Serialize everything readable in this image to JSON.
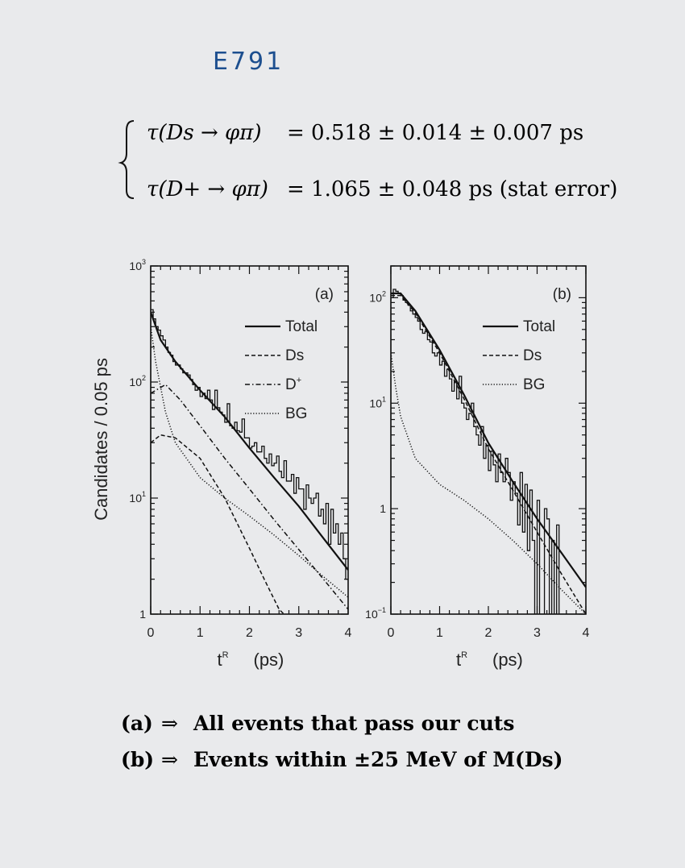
{
  "header": {
    "experiment": "E791"
  },
  "equations": {
    "line1": {
      "lhs": "τ(Ds → φπ)",
      "rhs": "= 0.518 ± 0.014 ± 0.007 ps"
    },
    "line2": {
      "lhs": "τ(D+ → φπ)",
      "rhs": "= 1.065 ± 0.048 ps  (stat error)"
    }
  },
  "shared_ylabel": "Candidates  /  0.05 ps",
  "chart_data": [
    {
      "type": "line",
      "panel_label": "(a)",
      "xlabel": "t",
      "xlabel_sup": "R",
      "xlabel_unit": "(ps)",
      "x_ticks": [
        "0",
        "1",
        "2",
        "3",
        "4"
      ],
      "xlim": [
        0,
        4
      ],
      "y_scale": "log",
      "ylim": [
        1,
        1000
      ],
      "y_ticks": [
        {
          "value": 1,
          "base": "1",
          "exp": ""
        },
        {
          "value": 10,
          "base": "10",
          "exp": "1"
        },
        {
          "value": 100,
          "base": "10",
          "exp": "2"
        },
        {
          "value": 1000,
          "base": "10",
          "exp": "3"
        }
      ],
      "legend_placement": "top-right",
      "series": [
        {
          "name": "Total",
          "style": "solid",
          "x": [
            0,
            0.2,
            0.5,
            1.0,
            1.5,
            2.0,
            2.5,
            3.0,
            3.5,
            4.0
          ],
          "y": [
            400,
            230,
            150,
            85,
            50,
            27,
            15,
            8.5,
            4.5,
            2.4
          ]
        },
        {
          "name": "Ds",
          "style": "dashed",
          "x": [
            0,
            0.2,
            0.5,
            1.0,
            1.5,
            2.0,
            2.3,
            2.6,
            2.7
          ],
          "y": [
            30,
            35,
            33,
            22,
            10,
            3.7,
            2.0,
            1.1,
            1.0
          ]
        },
        {
          "name": "D+",
          "style": "dash-dot",
          "x": [
            0,
            0.3,
            0.6,
            1.0,
            1.5,
            2.0,
            2.5,
            3.0,
            3.5,
            4.0
          ],
          "y": [
            80,
            95,
            70,
            42,
            22,
            12,
            6.5,
            3.6,
            2.0,
            1.1
          ]
        },
        {
          "name": "BG",
          "style": "dotted",
          "x": [
            0,
            0.1,
            0.3,
            0.5,
            1.0,
            1.5,
            2.0,
            2.5,
            3.0,
            3.5,
            4.0
          ],
          "y": [
            300,
            150,
            55,
            30,
            15,
            10,
            7,
            4.8,
            3.2,
            2.1,
            1.4
          ]
        }
      ],
      "histogram": {
        "name": "data",
        "bin_width": 0.05,
        "x_start": 0,
        "y": [
          420,
          350,
          300,
          280,
          250,
          230,
          200,
          180,
          170,
          150,
          140,
          140,
          130,
          120,
          120,
          115,
          105,
          95,
          85,
          90,
          75,
          80,
          72,
          85,
          70,
          58,
          85,
          60,
          55,
          52,
          45,
          65,
          42,
          40,
          45,
          38,
          37,
          48,
          33,
          33,
          27,
          28,
          30,
          25,
          25,
          28,
          22,
          20,
          24,
          19,
          20,
          23,
          17,
          15,
          21,
          14,
          14,
          16,
          11,
          15,
          12,
          12,
          8,
          13,
          10,
          9,
          10,
          11,
          7,
          8,
          6,
          9,
          4,
          8,
          5,
          6,
          4,
          5,
          3,
          2
        ]
      }
    },
    {
      "type": "line",
      "panel_label": "(b)",
      "xlabel": "t",
      "xlabel_sup": "R",
      "xlabel_unit": "(ps)",
      "x_ticks": [
        "0",
        "1",
        "2",
        "3",
        "4"
      ],
      "xlim": [
        0,
        4
      ],
      "y_scale": "log",
      "ylim": [
        0.1,
        200
      ],
      "y_ticks": [
        {
          "value": 0.1,
          "base": "10",
          "exp": "−1"
        },
        {
          "value": 1,
          "base": "1",
          "exp": ""
        },
        {
          "value": 10,
          "base": "10",
          "exp": "1"
        },
        {
          "value": 100,
          "base": "10",
          "exp": "2"
        }
      ],
      "legend_placement": "top-right",
      "series": [
        {
          "name": "Total",
          "style": "solid",
          "x": [
            0,
            0.2,
            0.5,
            1.0,
            1.5,
            2.0,
            2.5,
            3.0,
            3.5,
            4.0
          ],
          "y": [
            110,
            110,
            75,
            32,
            12,
            4.2,
            1.8,
            0.8,
            0.38,
            0.18
          ]
        },
        {
          "name": "Ds",
          "style": "dashed",
          "x": [
            0,
            0.2,
            0.5,
            1.0,
            1.5,
            2.0,
            2.5,
            3.0,
            3.5,
            4.0
          ],
          "y": [
            105,
            105,
            72,
            30,
            11,
            3.7,
            1.5,
            0.6,
            0.24,
            0.1
          ]
        },
        {
          "name": "BG",
          "style": "dotted",
          "x": [
            0,
            0.1,
            0.2,
            0.5,
            1.0,
            1.5,
            2.0,
            2.5,
            3.0,
            3.5,
            4.0
          ],
          "y": [
            30,
            14,
            7.5,
            3.0,
            1.7,
            1.2,
            0.8,
            0.5,
            0.3,
            0.17,
            0.1
          ]
        }
      ],
      "histogram": {
        "name": "data",
        "bin_width": 0.05,
        "x_start": 0,
        "y": [
          100,
          120,
          115,
          110,
          105,
          95,
          90,
          85,
          75,
          70,
          65,
          60,
          50,
          46,
          48,
          40,
          38,
          30,
          28,
          30,
          23,
          25,
          18,
          21,
          17,
          13,
          16,
          11,
          18,
          10,
          9,
          7,
          8,
          10,
          6,
          5,
          4,
          6,
          3,
          4,
          2.3,
          3.5,
          2.6,
          1.8,
          3.3,
          2.2,
          1.8,
          3.0,
          2.2,
          1.2,
          1.8,
          1.4,
          0.7,
          2.2,
          0.6,
          1.7,
          0.4,
          1.5,
          0.5,
          0.1,
          1.2,
          0.1,
          0.1,
          1.0,
          0.8,
          0.1,
          0.5,
          0.1,
          0.7,
          0.1,
          0.1,
          0.1,
          0.1,
          0.1,
          0.1,
          0.1,
          0.1,
          0.1,
          0.1,
          0.1
        ]
      }
    }
  ],
  "captions": [
    {
      "label": "(a)",
      "text": "All events that pass our cuts"
    },
    {
      "label": "(b)",
      "text": "Events within ±25 MeV of M(Ds)"
    }
  ]
}
